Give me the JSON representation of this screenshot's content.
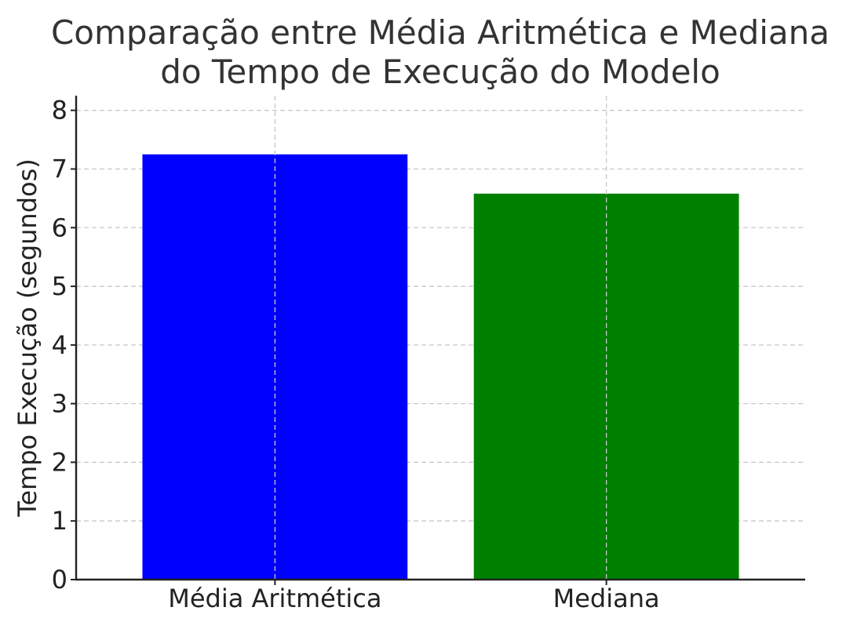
{
  "chart_data": {
    "type": "bar",
    "title": "Comparação entre Média Aritmética e Mediana\ndo Tempo de Execução do Modelo",
    "xlabel": "",
    "ylabel": "Tempo Execução (segundos)",
    "categories": [
      "Média Aritmética",
      "Mediana"
    ],
    "values": [
      7.25,
      6.58
    ],
    "colors": [
      "#0000ff",
      "#008000"
    ],
    "ylim": [
      0,
      8.25
    ],
    "yticks": [
      0,
      1,
      2,
      3,
      4,
      5,
      6,
      7,
      8
    ],
    "grid": true,
    "legend": "none"
  }
}
